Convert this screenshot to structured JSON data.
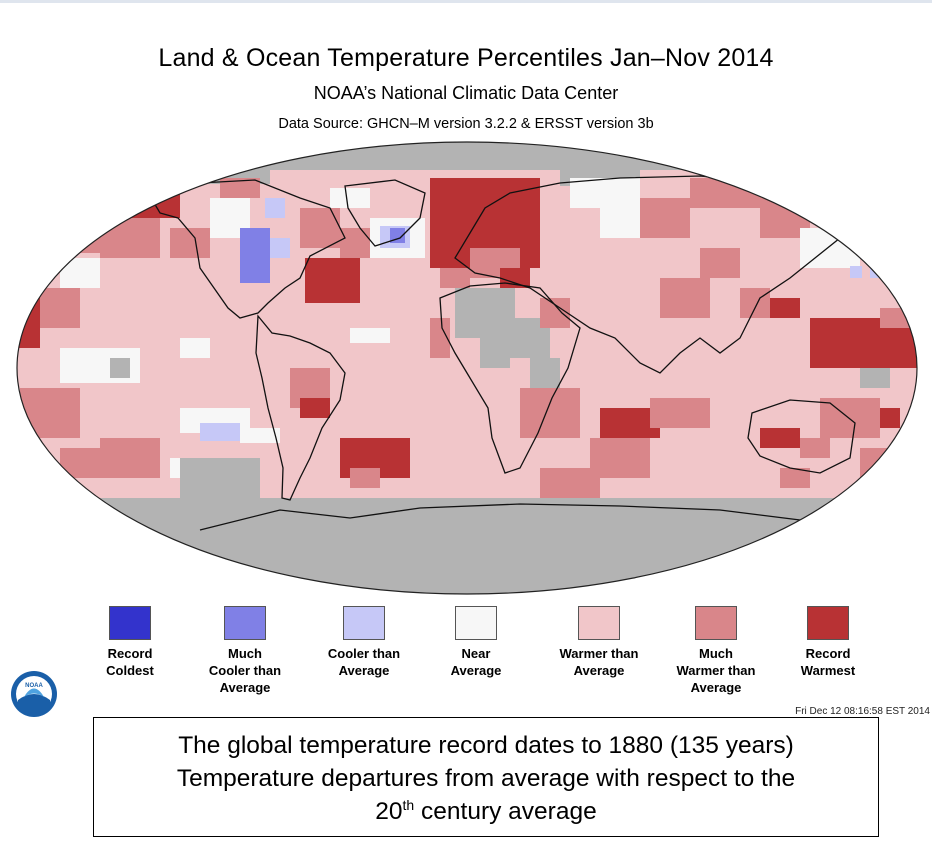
{
  "title": "Land & Ocean Temperature Percentiles Jan–Nov 2014",
  "subtitle": "NOAA’s National Climatic Data Center",
  "source": "Data Source: GHCN–M version 3.2.2 & ERSST version 3b",
  "legend": [
    {
      "label": "Record\nColdest",
      "color": "#3333cc"
    },
    {
      "label": "Much\nCooler than\nAverage",
      "color": "#8080e6"
    },
    {
      "label": "Cooler than\nAverage",
      "color": "#c6c8f7"
    },
    {
      "label": "Near\nAverage",
      "color": "#f7f7f7"
    },
    {
      "label": "Warmer than\nAverage",
      "color": "#f1c6c9"
    },
    {
      "label": "Much\nWarmer than\nAverage",
      "color": "#d9868a"
    },
    {
      "label": "Record\nWarmest",
      "color": "#b83234"
    }
  ],
  "logo_text": "NOAA",
  "timestamp": "Fri Dec 12 08:16:58 EST 2014",
  "caption": {
    "line1": "The global temperature record dates to 1880 (135 years)",
    "line2": "Temperature departures from average with respect to the",
    "line3_number": "20",
    "line3_sup": "th",
    "line3_rest": " century average"
  },
  "colors": {
    "missing": "#b3b3b3",
    "coast": "#111111"
  }
}
